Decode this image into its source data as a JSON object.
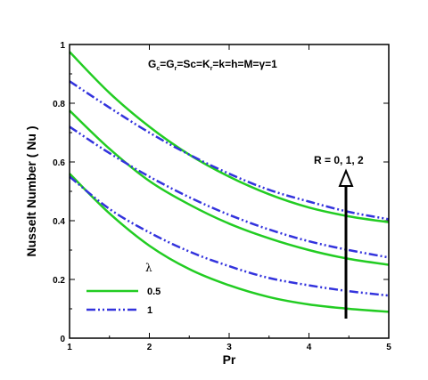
{
  "chart_data": {
    "type": "line",
    "xlabel": "Pr",
    "ylabel": "Nusselt Number ( Nu )",
    "xlim": [
      1,
      5
    ],
    "ylim": [
      0,
      1
    ],
    "xticks": [
      "1",
      "2",
      "3",
      "4",
      "5"
    ],
    "yticks": [
      "0",
      "0.2",
      "0.4",
      "0.6",
      "0.8",
      "1"
    ],
    "annotation": {
      "parameters": [
        "G",
        "c",
        "=G",
        "r",
        "=Sc=K",
        "r",
        "=k=h=M=γ=1"
      ],
      "arrow_label": "R = 0, 1, 2"
    },
    "legend": {
      "title": "λ",
      "entries": [
        {
          "label": "0.5",
          "color": "#22cc22",
          "style": "solid"
        },
        {
          "label": "1",
          "color": "#3333dd",
          "style": "dash-dot-dot"
        }
      ]
    },
    "x": [
      1,
      1.5,
      2,
      2.5,
      3,
      3.5,
      4,
      4.5,
      5
    ],
    "series": [
      {
        "group": "0.5",
        "color": "#22cc22",
        "style": "solid",
        "values": [
          0.975,
          0.835,
          0.72,
          0.625,
          0.55,
          0.49,
          0.445,
          0.415,
          0.395
        ]
      },
      {
        "group": "0.5",
        "color": "#22cc22",
        "style": "solid",
        "values": [
          0.775,
          0.645,
          0.535,
          0.455,
          0.39,
          0.34,
          0.3,
          0.27,
          0.25
        ]
      },
      {
        "group": "0.5",
        "color": "#22cc22",
        "style": "solid",
        "values": [
          0.56,
          0.425,
          0.315,
          0.235,
          0.18,
          0.14,
          0.115,
          0.1,
          0.09
        ]
      },
      {
        "group": "1",
        "color": "#3333dd",
        "style": "dash-dot-dot",
        "values": [
          0.875,
          0.785,
          0.7,
          0.625,
          0.56,
          0.505,
          0.465,
          0.43,
          0.405
        ]
      },
      {
        "group": "1",
        "color": "#3333dd",
        "style": "dash-dot-dot",
        "values": [
          0.72,
          0.63,
          0.55,
          0.48,
          0.42,
          0.37,
          0.33,
          0.3,
          0.275
        ]
      },
      {
        "group": "1",
        "color": "#3333dd",
        "style": "dash-dot-dot",
        "values": [
          0.55,
          0.44,
          0.36,
          0.295,
          0.245,
          0.205,
          0.18,
          0.16,
          0.145
        ]
      }
    ]
  }
}
